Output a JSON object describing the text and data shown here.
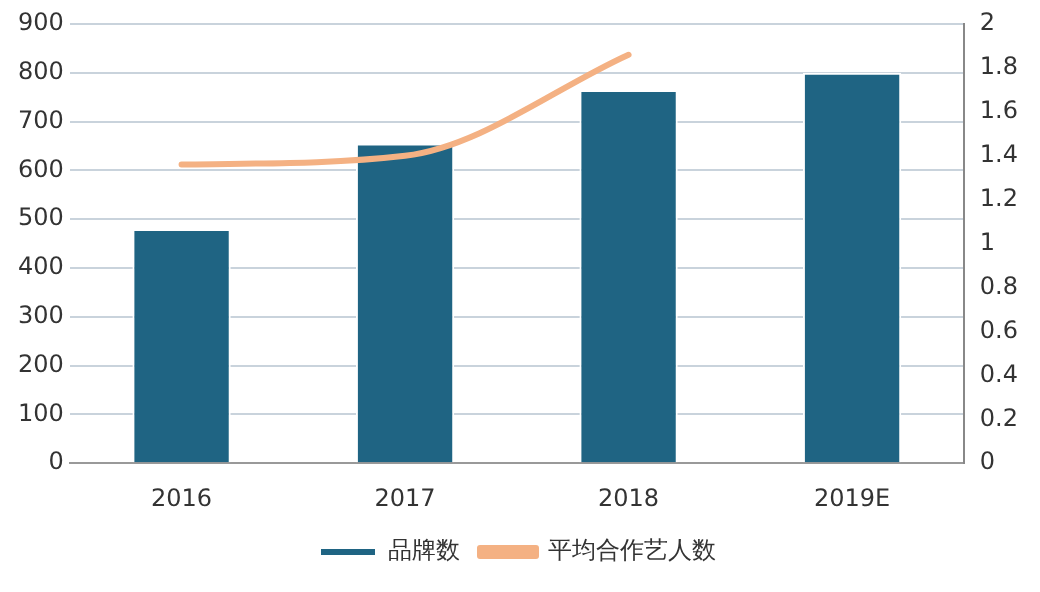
{
  "chart_data": {
    "type": "bar",
    "categories": [
      "2016",
      "2017",
      "2018",
      "2019E"
    ],
    "series": [
      {
        "name": "品牌数",
        "color": "#1f6483",
        "values": [
          480,
          655,
          765,
          800
        ]
      },
      {
        "name": "平均合作艺人数",
        "type": "line",
        "axis": "y2",
        "color": "#f4b183",
        "values": [
          1.36,
          1.4,
          1.86,
          null
        ]
      }
    ],
    "ylim": [
      0,
      900
    ],
    "yticks": [
      0,
      100,
      200,
      300,
      400,
      500,
      600,
      700,
      800,
      900
    ],
    "y2lim": [
      0,
      2
    ],
    "y2ticks": [
      0,
      0.2,
      0.4,
      0.6,
      0.8,
      1,
      1.2,
      1.4,
      1.6,
      1.8,
      2
    ],
    "grid": "y",
    "legend": "bottom",
    "marker": "none"
  }
}
